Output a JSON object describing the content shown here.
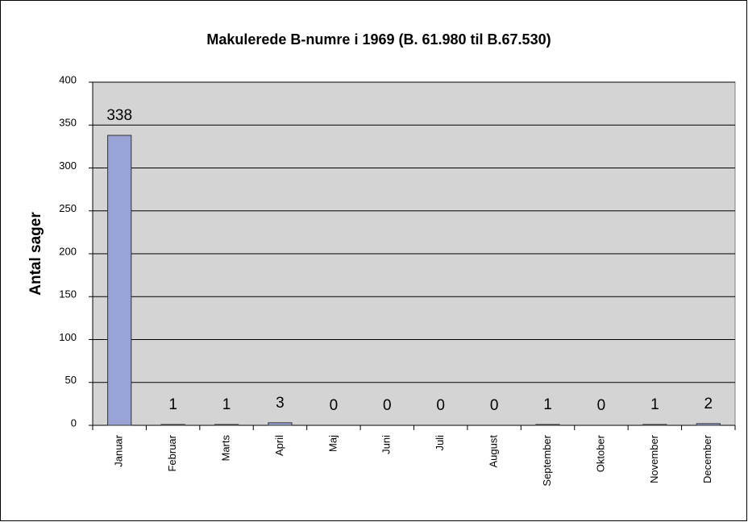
{
  "chart_data": {
    "type": "bar",
    "title": "Makulerede B-numre i 1969  (B. 61.980 til B.67.530)",
    "y_label": "Antal sager",
    "categories": [
      "Januar",
      "Februar",
      "Marts",
      "April",
      "Maj",
      "Juni",
      "Juli",
      "August",
      "September",
      "Oktober",
      "November",
      "December"
    ],
    "values": [
      338,
      1,
      1,
      3,
      0,
      0,
      0,
      0,
      1,
      0,
      1,
      2
    ],
    "color": "#99a3d6",
    "ylim": [
      0,
      400
    ],
    "yticks": [
      0,
      50,
      100,
      150,
      200,
      250,
      300,
      350,
      400
    ],
    "grid": true
  }
}
